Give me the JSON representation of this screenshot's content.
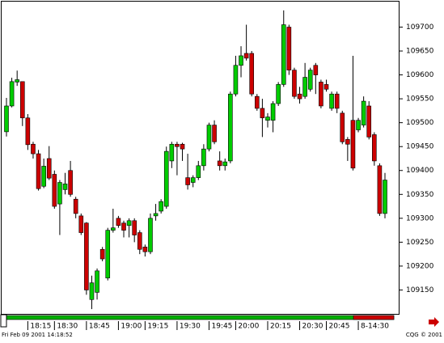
{
  "chart_data": {
    "type": "candlestick",
    "categories": [
      null,
      null,
      null,
      null,
      "18:15",
      null,
      null,
      null,
      null,
      "18:30",
      null,
      null,
      null,
      null,
      null,
      "18:45",
      null,
      null,
      null,
      null,
      null,
      "19:00",
      null,
      null,
      null,
      null,
      "19:15",
      null,
      null,
      null,
      null,
      null,
      "19:30",
      null,
      null,
      null,
      null,
      null,
      "19:45",
      null,
      null,
      null,
      null,
      "20:00",
      null,
      null,
      null,
      null,
      null,
      "20:15",
      null,
      null,
      null,
      null,
      null,
      "20:30",
      null,
      null,
      null,
      null,
      "20:45",
      null,
      null,
      null,
      null,
      null,
      "8-14:30",
      null,
      null,
      null,
      null,
      null
    ],
    "open": [
      109481,
      109535,
      109585,
      109586,
      109510,
      109455,
      109435,
      109367,
      109425,
      109392,
      109330,
      109360,
      109400,
      109340,
      109305,
      109290,
      109130,
      109145,
      109235,
      109175,
      109275,
      109300,
      109290,
      109285,
      109295,
      109270,
      109240,
      109230,
      109305,
      109315,
      109325,
      109420,
      109455,
      109455,
      109385,
      109375,
      109385,
      109410,
      109445,
      109495,
      109420,
      109410,
      109420,
      109560,
      109620,
      109645,
      109645,
      109555,
      109530,
      109505,
      109505,
      109540,
      109580,
      109700,
      109610,
      109560,
      109555,
      109570,
      109620,
      109585,
      109580,
      109530,
      109560,
      109520,
      109465,
      109505,
      109485,
      109495,
      109535,
      109475,
      109410,
      109310
    ],
    "high": [
      109552,
      109594,
      109609,
      109586,
      109518,
      109460,
      109443,
      109425,
      109451,
      109400,
      109380,
      109395,
      109420,
      109345,
      109310,
      109292,
      109180,
      109195,
      109240,
      109280,
      109320,
      109305,
      109295,
      109300,
      109300,
      109275,
      109245,
      109310,
      109330,
      109340,
      109450,
      109460,
      109460,
      109458,
      109435,
      109390,
      109420,
      109455,
      109500,
      109505,
      109440,
      109425,
      109565,
      109640,
      109660,
      109705,
      109650,
      109560,
      109550,
      109520,
      109545,
      109585,
      109735,
      109705,
      109615,
      109575,
      109625,
      109615,
      109625,
      109590,
      109590,
      109565,
      109565,
      109525,
      109470,
      109640,
      109510,
      109555,
      109545,
      109480,
      109415,
      109395
    ],
    "low": [
      109471,
      109532,
      109577,
      109493,
      109443,
      109425,
      109358,
      109363,
      109380,
      109320,
      109265,
      109350,
      109345,
      109300,
      109265,
      109140,
      109110,
      109130,
      109210,
      109170,
      109270,
      109280,
      109260,
      109260,
      109250,
      109225,
      109220,
      109225,
      109295,
      109310,
      109320,
      109405,
      109390,
      109420,
      109360,
      109365,
      109380,
      109400,
      109440,
      109455,
      109400,
      109400,
      109415,
      109555,
      109595,
      109630,
      109555,
      109525,
      109470,
      109490,
      109480,
      109535,
      109575,
      109600,
      109550,
      109540,
      109550,
      109565,
      109560,
      109530,
      109565,
      109525,
      109520,
      109455,
      109420,
      109400,
      109480,
      109490,
      109465,
      109410,
      109305,
      109300
    ],
    "close": [
      109535,
      109586,
      109590,
      109510,
      109454,
      109435,
      109362,
      109409,
      109384,
      109325,
      109375,
      109372,
      109350,
      109310,
      109270,
      109150,
      109165,
      109190,
      109215,
      109275,
      109280,
      109285,
      109275,
      109295,
      109265,
      109235,
      109230,
      109300,
      109310,
      109335,
      109440,
      109455,
      109450,
      109445,
      109370,
      109385,
      109410,
      109445,
      109495,
      109460,
      109410,
      109418,
      109560,
      109620,
      109640,
      109635,
      109560,
      109530,
      109510,
      109512,
      109540,
      109580,
      109705,
      109610,
      109555,
      109550,
      109595,
      109610,
      109600,
      109535,
      109570,
      109560,
      109530,
      109460,
      109455,
      109405,
      109505,
      109545,
      109470,
      109420,
      109310,
      109380
    ],
    "up_color": "#00cc00",
    "down_color": "#cc0000",
    "ylim": [
      109100,
      109755
    ],
    "yticks": [
      109150,
      109200,
      109250,
      109300,
      109350,
      109400,
      109450,
      109500,
      109550,
      109600,
      109650,
      109700
    ],
    "footer_left": "Fri Feb 09 2001 14:18:52",
    "footer_right": "CQG © 2001"
  }
}
